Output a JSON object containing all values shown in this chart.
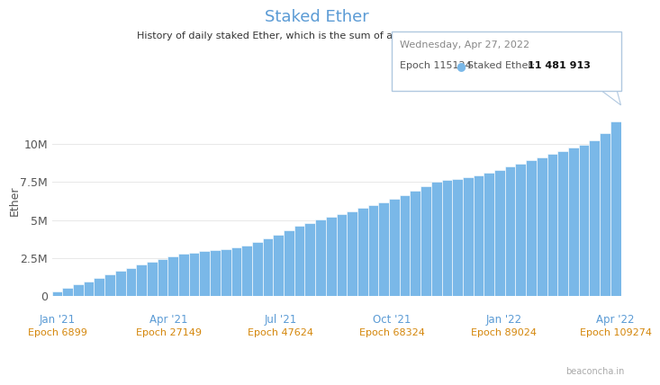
{
  "title": "Staked Ether",
  "subtitle": "History of daily staked Ether, which is the sum of all Effective Balances.",
  "ylabel": "Ether",
  "bar_color": "#7ab8e8",
  "bar_edge_color": "#ffffff",
  "background_color": "#ffffff",
  "grid_color": "#e8e8e8",
  "title_color": "#5b9bd5",
  "subtitle_color": "#333333",
  "epoch_label_color": "#d4860a",
  "tick_label_color": "#5b9bd5",
  "watermark": "beaconcha.in",
  "tooltip": {
    "date": "Wednesday, Apr 27, 2022",
    "epoch": "115124",
    "value": "11 481 913",
    "color": "#7ab8e8"
  },
  "x_ticks": [
    {
      "label": "Jan '21",
      "epoch": "Epoch 6899"
    },
    {
      "label": "Apr '21",
      "epoch": "Epoch 27149"
    },
    {
      "label": "Jul '21",
      "epoch": "Epoch 47624"
    },
    {
      "label": "Oct '21",
      "epoch": "Epoch 68324"
    },
    {
      "label": "Jan '22",
      "epoch": "Epoch 89024"
    },
    {
      "label": "Apr '22",
      "epoch": "Epoch 109274"
    }
  ],
  "ylim": [
    0,
    12500000
  ],
  "yticks": [
    0,
    2500000,
    5000000,
    7500000,
    10000000
  ],
  "ytick_labels": [
    "0",
    "2.5M",
    "5M",
    "7.5M",
    "10M"
  ],
  "values": [
    280000,
    520000,
    750000,
    980000,
    1200000,
    1420000,
    1650000,
    1870000,
    2050000,
    2230000,
    2420000,
    2600000,
    2780000,
    2870000,
    2950000,
    3020000,
    3090000,
    3180000,
    3320000,
    3530000,
    3780000,
    4050000,
    4320000,
    4610000,
    4820000,
    5010000,
    5200000,
    5390000,
    5580000,
    5780000,
    5980000,
    6180000,
    6390000,
    6600000,
    6900000,
    7200000,
    7510000,
    7610000,
    7710000,
    7820000,
    7930000,
    8100000,
    8300000,
    8500000,
    8710000,
    8920000,
    9120000,
    9330000,
    9530000,
    9740000,
    9950000,
    10250000,
    10720000,
    11481913
  ]
}
